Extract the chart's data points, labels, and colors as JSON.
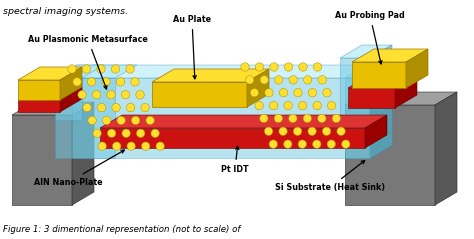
{
  "title_top": "spectral imaging systems.",
  "caption": "Figure 1: 3 dimentional representation (not to scale) of",
  "labels": {
    "au_plasmonic": "Au Plasmonic Metasurface",
    "au_plate": "Au Plate",
    "au_probing": "Au Probing Pad",
    "aln": "AlN Nano-Plate",
    "pt_idt": "Pt IDT",
    "si_substrate": "Si Substrate (Heat Sink)"
  },
  "colors": {
    "background": "#ffffff",
    "gray_front": "#787878",
    "gray_top": "#a0a0a0",
    "gray_side": "#585858",
    "au_front": "#E8C000",
    "au_top": "#FFE030",
    "au_side": "#B09000",
    "red_front": "#CC1111",
    "red_top": "#DD3333",
    "red_side": "#990000",
    "cyan_front": "#70C8E0",
    "cyan_top": "#A8E8F8",
    "cyan_side": "#50A8C0",
    "text": "#000000"
  },
  "figsize": [
    4.74,
    2.39
  ],
  "dpi": 100
}
